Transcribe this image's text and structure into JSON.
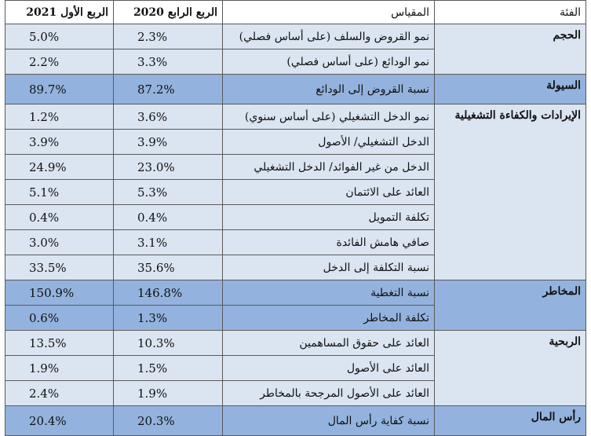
{
  "headers": {
    "category": "الفئة",
    "metric": "المقياس",
    "q4_2020": "الربع الرابع 2020",
    "q1_2021": "الربع الأول 2021"
  },
  "categories": {
    "volume": "الحجم",
    "liquidity": "السيولة",
    "revenue": "الإيرادات والكفاءة التشغيلية",
    "risk": "المخاطر",
    "profitability": "الربحية",
    "capital": "رأس المال"
  },
  "rows": [
    {
      "metric": "نمو القروض والسلف (على أساس فصلي)",
      "q4_2020": "2.3%",
      "q1_2021": "5.0%"
    },
    {
      "metric": "نمو الودائع (على أساس فصلي)",
      "q4_2020": "3.3%",
      "q1_2021": "2.2%"
    },
    {
      "metric": "نسبة القروض إلى الودائع",
      "q4_2020": "87.2%",
      "q1_2021": "89.7%"
    },
    {
      "metric": "نمو الدخل التشغيلي (على أساس سنوي)",
      "q4_2020": "3.6%",
      "q1_2021": "1.2%"
    },
    {
      "metric": "الدخل التشغيلي/ الأصول",
      "q4_2020": "3.9%",
      "q1_2021": "3.9%"
    },
    {
      "metric": "الدخل من غير الفوائد/ الدخل التشغيلي",
      "q4_2020": "23.0%",
      "q1_2021": "24.9%"
    },
    {
      "metric": "العائد على الائتمان",
      "q4_2020": "5.3%",
      "q1_2021": "5.1%"
    },
    {
      "metric": "تكلفة التمويل",
      "q4_2020": "0.4%",
      "q1_2021": "0.4%"
    },
    {
      "metric": "صافي هامش الفائدة",
      "q4_2020": "3.1%",
      "q1_2021": "3.0%"
    },
    {
      "metric": "نسبة التكلفة إلى الدخل",
      "q4_2020": "35.6%",
      "q1_2021": "33.5%"
    },
    {
      "metric": "نسبة التغطية",
      "q4_2020": "146.8%",
      "q1_2021": "150.9%"
    },
    {
      "metric": "تكلفة المخاطر",
      "q4_2020": "1.3%",
      "q1_2021": "0.6%"
    },
    {
      "metric": "العائد على حقوق المساهمين",
      "q4_2020": "10.3%",
      "q1_2021": "13.5%"
    },
    {
      "metric": "العائد على الأصول",
      "q4_2020": "1.5%",
      "q1_2021": "1.9%"
    },
    {
      "metric": "العائد على الأصول المرجحة بالمخاطر",
      "q4_2020": "1.9%",
      "q1_2021": "2.4%"
    },
    {
      "metric": "نسبة كفاية رأس المال",
      "q4_2020": "20.3%",
      "q1_2021": "20.4%"
    }
  ]
}
